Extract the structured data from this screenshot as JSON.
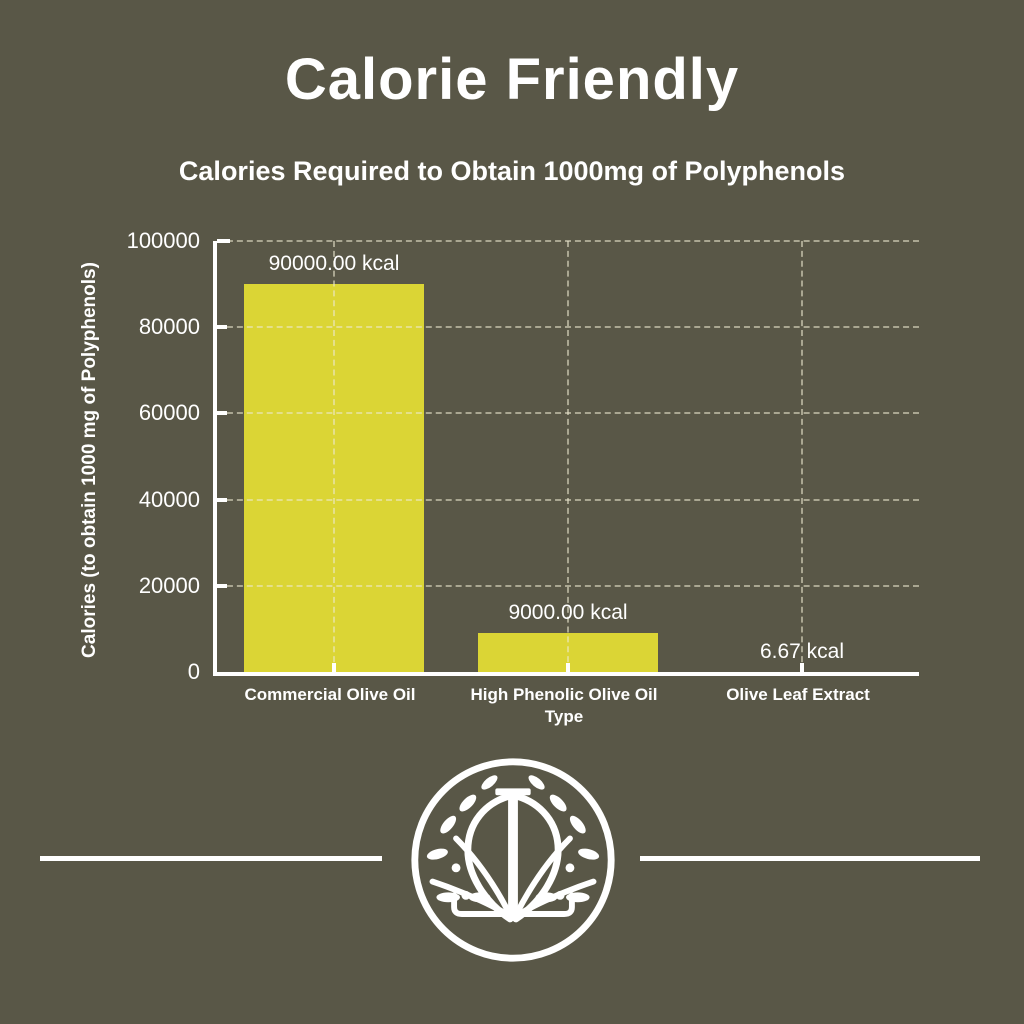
{
  "page": {
    "background": "#595747",
    "text_color": "#ffffff"
  },
  "header": {
    "title": "Calorie Friendly"
  },
  "chart_data": {
    "type": "bar",
    "title": "Calories Required to Obtain 1000mg of Polyphenols",
    "categories": [
      "Commercial Olive Oil",
      "High Phenolic Olive Oil Type",
      "Olive Leaf Extract"
    ],
    "values": [
      90000,
      9000,
      6.67
    ],
    "value_labels": [
      "90000.00 kcal",
      "9000.00 kcal",
      "6.67 kcal"
    ],
    "unit": "kcal",
    "xlabel": "",
    "ylabel": "Calories (to obtain 1000 mg of Polyphenols)",
    "ylim": [
      0,
      100000
    ],
    "yticks": [
      0,
      20000,
      40000,
      60000,
      80000,
      100000
    ],
    "ytick_labels": [
      "0",
      "20000",
      "40000",
      "60000",
      "80000",
      "100000"
    ],
    "grid": true,
    "legend_position": "none",
    "bar_color": "#dbd535",
    "gridline_color": "rgba(236,233,208,0.55)"
  },
  "footer": {
    "logo": "olive-tree-logo"
  }
}
